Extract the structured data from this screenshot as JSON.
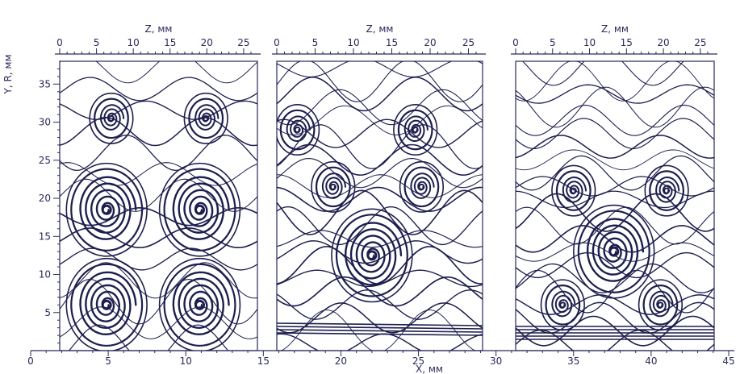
{
  "chart_data": {
    "type": "streamline",
    "colors": {
      "line": "#1e1e4e",
      "axis": "#2a2a5a",
      "background": "#ffffff"
    },
    "x_axis": {
      "label": "X, мм",
      "range": [
        0,
        45
      ],
      "ticks": [
        0,
        5,
        10,
        15,
        20,
        25,
        30,
        35,
        40,
        45
      ]
    },
    "y_axis": {
      "label": "Y, R, мм",
      "range": [
        0,
        38
      ],
      "ticks": [
        5,
        10,
        15,
        20,
        25,
        30,
        35
      ]
    },
    "panels": [
      {
        "z_axis": {
          "label": "Z, мм",
          "range": [
            0,
            26
          ],
          "ticks": [
            0,
            5,
            10,
            15,
            20,
            25
          ]
        },
        "vortices": [
          {
            "x": 4.9,
            "y": 6.0,
            "size": "large"
          },
          {
            "x": 10.9,
            "y": 6.0,
            "size": "large"
          },
          {
            "x": 4.9,
            "y": 18.5,
            "size": "large"
          },
          {
            "x": 10.9,
            "y": 18.5,
            "size": "large"
          },
          {
            "x": 5.2,
            "y": 30.5,
            "size": "small"
          },
          {
            "x": 11.3,
            "y": 30.5,
            "size": "small"
          }
        ]
      },
      {
        "z_axis": {
          "label": "Z, мм",
          "range": [
            0,
            26
          ],
          "ticks": [
            0,
            5,
            10,
            15,
            20,
            25
          ]
        },
        "vortices": [
          {
            "x": 22.0,
            "y": 12.5,
            "size": "large"
          },
          {
            "x": 17.2,
            "y": 29.0,
            "size": "small"
          },
          {
            "x": 24.8,
            "y": 29.0,
            "size": "small"
          },
          {
            "x": 19.5,
            "y": 21.5,
            "size": "small"
          },
          {
            "x": 25.2,
            "y": 21.5,
            "size": "small"
          }
        ]
      },
      {
        "z_axis": {
          "label": "Z, мм",
          "range": [
            0,
            26
          ],
          "ticks": [
            0,
            5,
            10,
            15,
            20,
            25
          ]
        },
        "vortices": [
          {
            "x": 37.6,
            "y": 13.0,
            "size": "large"
          },
          {
            "x": 34.3,
            "y": 6.0,
            "size": "small"
          },
          {
            "x": 40.6,
            "y": 6.0,
            "size": "small"
          },
          {
            "x": 35.0,
            "y": 21.0,
            "size": "small"
          },
          {
            "x": 41.0,
            "y": 21.0,
            "size": "small"
          }
        ]
      }
    ]
  }
}
